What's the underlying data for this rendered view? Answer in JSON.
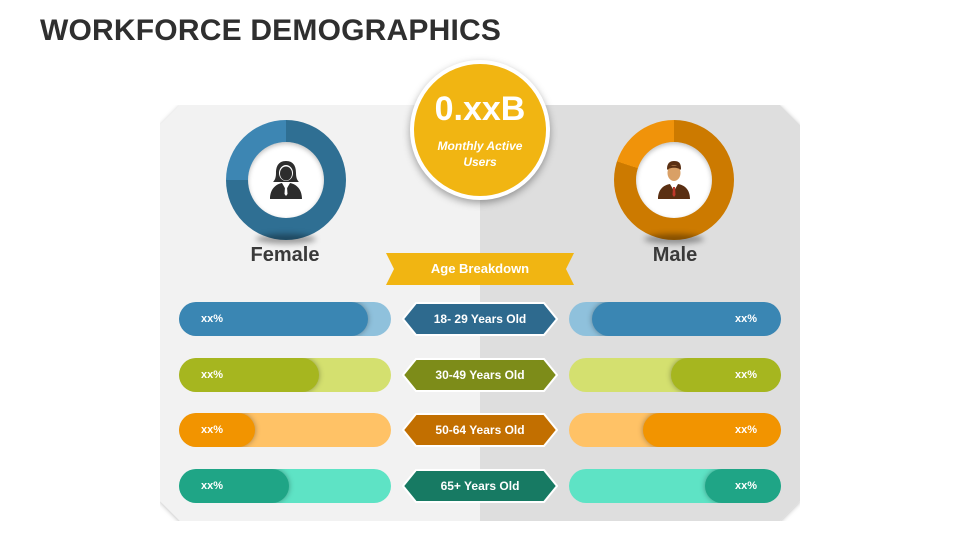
{
  "title": "WORKFORCE DEMOGRAPHICS",
  "center": {
    "value": "0.xxB",
    "subtitle": "Monthly Active Users",
    "color": "#f1b512"
  },
  "age_banner": "Age Breakdown",
  "female": {
    "label": "Female",
    "icon": "businesswoman-icon",
    "ring_color": "#2f6f93",
    "ring_light": "#3d86b3",
    "ring_share": 0.75
  },
  "male": {
    "label": "Male",
    "icon": "businessman-icon",
    "ring_color": "#cc7a00",
    "ring_light": "#f0930a",
    "ring_share": 0.8
  },
  "rows": [
    {
      "age": "18- 29 Years Old",
      "hex_color": "#2e6a8e",
      "dark": "#3a86b3",
      "light": "#8fc1dc",
      "female": {
        "text": "xx%",
        "fill": 0.89
      },
      "male": {
        "text": "xx%",
        "fill": 0.89
      }
    },
    {
      "age": "30-49 Years Old",
      "hex_color": "#7d8c19",
      "dark": "#a6b61f",
      "light": "#d4e06f",
      "female": {
        "text": "xx%",
        "fill": 0.66
      },
      "male": {
        "text": "xx%",
        "fill": 0.52
      }
    },
    {
      "age": "50-64  Years Old",
      "hex_color": "#c26f00",
      "dark": "#f29400",
      "light": "#ffc266",
      "female": {
        "text": "xx%",
        "fill": 0.36
      },
      "male": {
        "text": "xx%",
        "fill": 0.65
      }
    },
    {
      "age": "65+ Years Old",
      "hex_color": "#177a63",
      "dark": "#1fa586",
      "light": "#5ee3c5",
      "female": {
        "text": "xx%",
        "fill": 0.52
      },
      "male": {
        "text": "xx%",
        "fill": 0.36
      }
    }
  ]
}
